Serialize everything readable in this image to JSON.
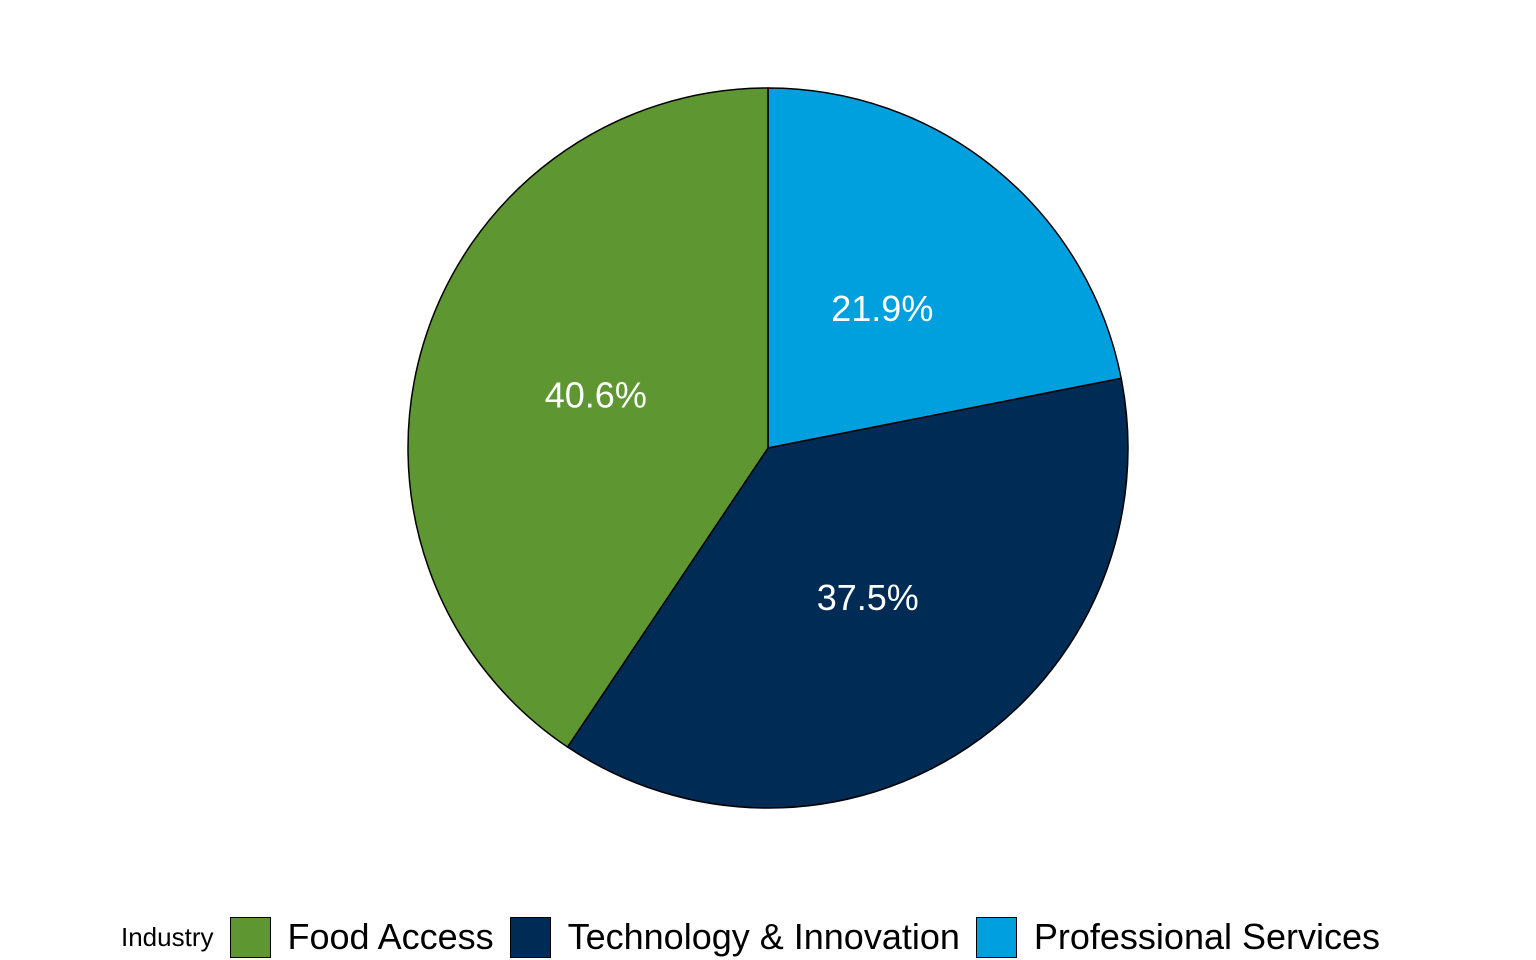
{
  "chart_data": {
    "type": "pie",
    "title": "",
    "legend_title": "Industry",
    "legend_position": "bottom",
    "start": "top",
    "direction": "clockwise",
    "slices": [
      {
        "label": "Professional Services",
        "value": 21.9,
        "display": "21.9%",
        "color": "#009FDD"
      },
      {
        "label": "Technology & Innovation",
        "value": 37.5,
        "display": "37.5%",
        "color": "#002B54"
      },
      {
        "label": "Food Access",
        "value": 40.6,
        "display": "40.6%",
        "color": "#5E9732"
      }
    ],
    "legend_order": [
      "Food Access",
      "Technology & Innovation",
      "Professional Services"
    ]
  }
}
